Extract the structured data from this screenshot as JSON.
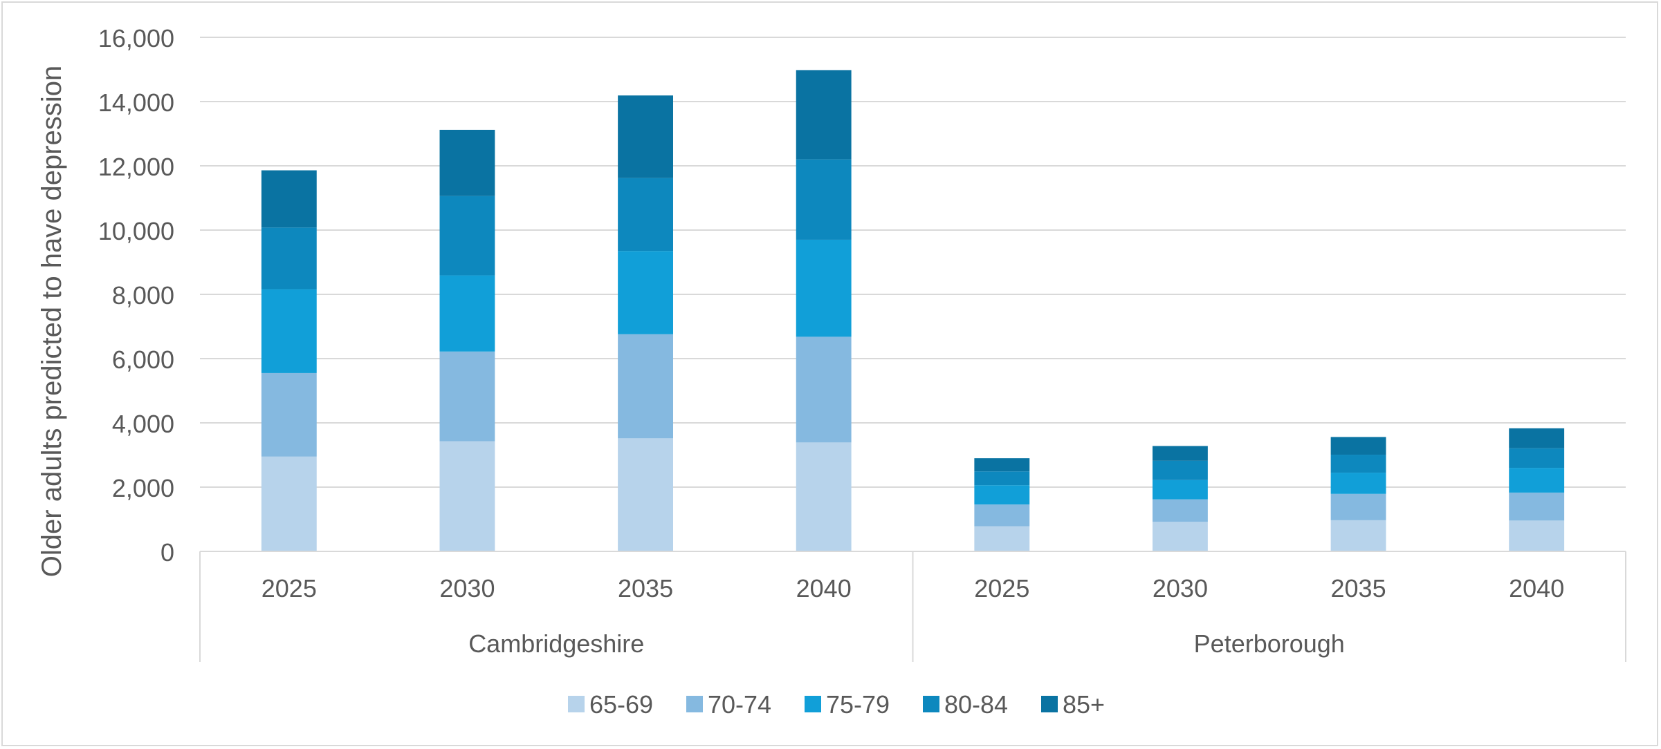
{
  "chart_data": {
    "type": "bar",
    "stacked": true,
    "title": "",
    "xlabel": "",
    "ylabel": "Older adults predicted to have depression",
    "ylim": [
      0,
      16000
    ],
    "yticks": [
      0,
      2000,
      4000,
      6000,
      8000,
      10000,
      12000,
      14000,
      16000
    ],
    "ytick_labels": [
      "0",
      "2,000",
      "4,000",
      "6,000",
      "8,000",
      "10,000",
      "12,000",
      "14,000",
      "16,000"
    ],
    "grid": true,
    "legend_position": "bottom",
    "groups": [
      {
        "name": "Cambridgeshire",
        "categories": [
          "2025",
          "2030",
          "2035",
          "2040"
        ]
      },
      {
        "name": "Peterborough",
        "categories": [
          "2025",
          "2030",
          "2035",
          "2040"
        ]
      }
    ],
    "series": [
      {
        "name": "65-69",
        "color": "#b7d3eb",
        "values": [
          2950,
          3430,
          3520,
          3390,
          780,
          920,
          970,
          960
        ]
      },
      {
        "name": "70-74",
        "color": "#85b9e0",
        "values": [
          2600,
          2790,
          3240,
          3290,
          680,
          700,
          820,
          870
        ]
      },
      {
        "name": "75-79",
        "color": "#119fd8",
        "values": [
          2610,
          2370,
          2590,
          3020,
          600,
          600,
          660,
          770
        ]
      },
      {
        "name": "80-84",
        "color": "#0d88be",
        "values": [
          1920,
          2470,
          2270,
          2500,
          430,
          600,
          560,
          610
        ]
      },
      {
        "name": "85+",
        "color": "#0a73a2",
        "values": [
          1780,
          2060,
          2570,
          2780,
          410,
          460,
          550,
          620
        ]
      }
    ]
  }
}
